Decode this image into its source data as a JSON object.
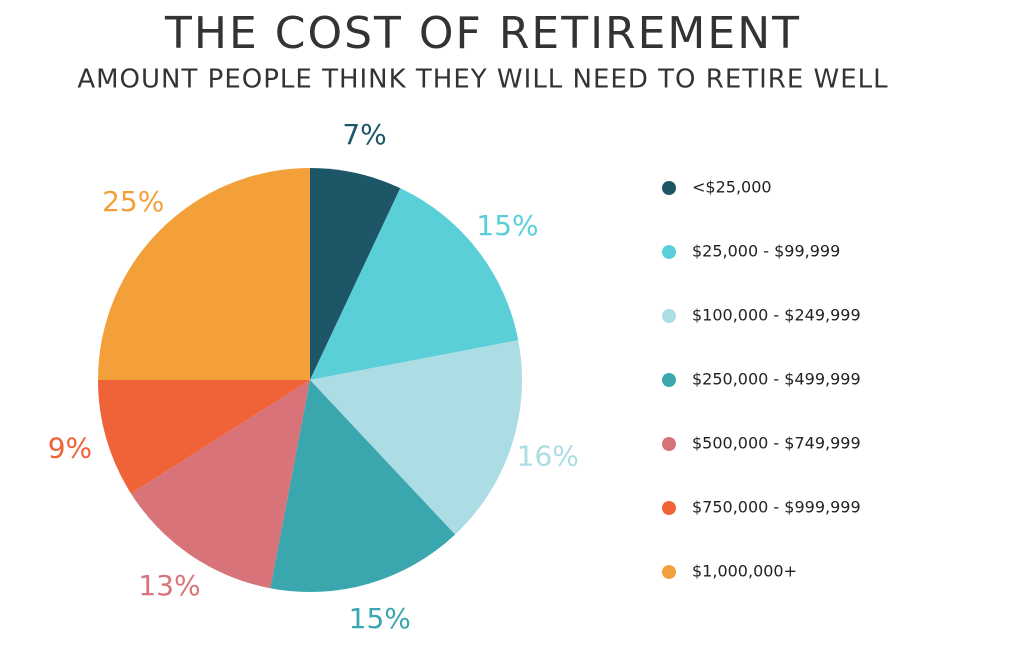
{
  "chart_data": {
    "type": "pie",
    "title": "THE COST OF RETIREMENT",
    "subtitle": "AMOUNT PEOPLE THINK THEY WILL NEED TO RETIRE WELL",
    "categories": [
      "<$25,000",
      "$25,000 - $99,999",
      "$100,000 - $249,999",
      "$250,000 - $499,999",
      "$500,000 - $749,999",
      "$750,000 - $999,999",
      "$1,000,000+"
    ],
    "values": [
      7,
      15,
      16,
      15,
      13,
      9,
      25
    ],
    "value_labels": [
      "7%",
      "15%",
      "16%",
      "15%",
      "13%",
      "9%",
      "25%"
    ],
    "colors": [
      "#1c5667",
      "#5bcfd8",
      "#acdce4",
      "#3aa6ae",
      "#d8737a",
      "#f06238",
      "#f4a03a"
    ],
    "legend": "right"
  }
}
